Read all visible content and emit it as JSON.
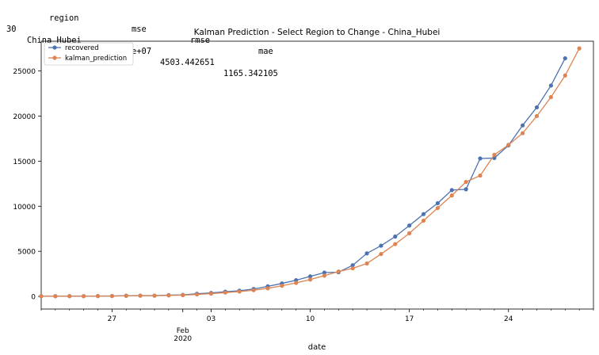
{
  "dataframe": {
    "columns": [
      "region",
      "mse",
      "rmse",
      "mae"
    ],
    "row": {
      "index": "30",
      "region": "China_Hubei",
      "mse": "2.028100e+07",
      "rmse": "4503.442651",
      "mae": "1165.342105"
    }
  },
  "chart_data": {
    "type": "line",
    "title": "Kalman Prediction - Select Region to Change - China_Hubei",
    "xlabel": "date",
    "ylabel": "",
    "x_start": "2020-01-22",
    "x_end": "2020-03-01",
    "ylim": [
      -1400,
      28300
    ],
    "grid": false,
    "legend_position": "top-left",
    "x_ticks": [
      {
        "date": "2020-01-27",
        "label": "27",
        "sublabel": ""
      },
      {
        "date": "2020-02-03",
        "label": "03",
        "sublabel": ""
      },
      {
        "date": "2020-02-10",
        "label": "10",
        "sublabel": ""
      },
      {
        "date": "2020-02-17",
        "label": "17",
        "sublabel": ""
      },
      {
        "date": "2020-02-24",
        "label": "24",
        "sublabel": ""
      }
    ],
    "month_label": {
      "date": "2020-02-01",
      "month": "Feb",
      "year": "2020"
    },
    "y_ticks": [
      0,
      5000,
      10000,
      15000,
      20000,
      25000
    ],
    "series": [
      {
        "name": "recovered",
        "color": "#4c72b0",
        "points": [
          [
            "2020-01-22",
            28
          ],
          [
            "2020-01-23",
            28
          ],
          [
            "2020-01-24",
            31
          ],
          [
            "2020-01-25",
            32
          ],
          [
            "2020-01-26",
            42
          ],
          [
            "2020-01-27",
            45
          ],
          [
            "2020-01-28",
            80
          ],
          [
            "2020-01-29",
            88
          ],
          [
            "2020-01-30",
            90
          ],
          [
            "2020-01-31",
            141
          ],
          [
            "2020-02-01",
            168
          ],
          [
            "2020-02-02",
            295
          ],
          [
            "2020-02-03",
            386
          ],
          [
            "2020-02-04",
            522
          ],
          [
            "2020-02-05",
            633
          ],
          [
            "2020-02-06",
            817
          ],
          [
            "2020-02-07",
            1115
          ],
          [
            "2020-02-08",
            1439
          ],
          [
            "2020-02-09",
            1795
          ],
          [
            "2020-02-10",
            2222
          ],
          [
            "2020-02-11",
            2639
          ],
          [
            "2020-02-12",
            2686
          ],
          [
            "2020-02-13",
            3459
          ],
          [
            "2020-02-14",
            4774
          ],
          [
            "2020-02-15",
            5623
          ],
          [
            "2020-02-16",
            6639
          ],
          [
            "2020-02-17",
            7862
          ],
          [
            "2020-02-18",
            9128
          ],
          [
            "2020-02-19",
            10337
          ],
          [
            "2020-02-20",
            11788
          ],
          [
            "2020-02-21",
            11881
          ],
          [
            "2020-02-22",
            15299
          ],
          [
            "2020-02-23",
            15343
          ],
          [
            "2020-02-24",
            16748
          ],
          [
            "2020-02-25",
            18971
          ],
          [
            "2020-02-26",
            20969
          ],
          [
            "2020-02-27",
            23383
          ],
          [
            "2020-02-28",
            26403
          ]
        ]
      },
      {
        "name": "kalman_prediction",
        "color": "#dd8452",
        "points": [
          [
            "2020-01-22",
            20
          ],
          [
            "2020-01-23",
            24
          ],
          [
            "2020-01-24",
            27
          ],
          [
            "2020-01-25",
            30
          ],
          [
            "2020-01-26",
            36
          ],
          [
            "2020-01-27",
            42
          ],
          [
            "2020-01-28",
            60
          ],
          [
            "2020-01-29",
            75
          ],
          [
            "2020-01-30",
            85
          ],
          [
            "2020-01-31",
            110
          ],
          [
            "2020-02-01",
            140
          ],
          [
            "2020-02-02",
            220
          ],
          [
            "2020-02-03",
            310
          ],
          [
            "2020-02-04",
            430
          ],
          [
            "2020-02-05",
            540
          ],
          [
            "2020-02-06",
            690
          ],
          [
            "2020-02-07",
            900
          ],
          [
            "2020-02-08",
            1180
          ],
          [
            "2020-02-09",
            1500
          ],
          [
            "2020-02-10",
            1870
          ],
          [
            "2020-02-11",
            2300
          ],
          [
            "2020-02-12",
            2760
          ],
          [
            "2020-02-13",
            3110
          ],
          [
            "2020-02-14",
            3650
          ],
          [
            "2020-02-15",
            4700
          ],
          [
            "2020-02-16",
            5800
          ],
          [
            "2020-02-17",
            7000
          ],
          [
            "2020-02-18",
            8400
          ],
          [
            "2020-02-19",
            9800
          ],
          [
            "2020-02-20",
            11200
          ],
          [
            "2020-02-21",
            12700
          ],
          [
            "2020-02-22",
            13400
          ],
          [
            "2020-02-23",
            15700
          ],
          [
            "2020-02-24",
            16800
          ],
          [
            "2020-02-25",
            18100
          ],
          [
            "2020-02-26",
            20000
          ],
          [
            "2020-02-27",
            22100
          ],
          [
            "2020-02-28",
            24500
          ],
          [
            "2020-02-29",
            27500
          ]
        ]
      }
    ]
  }
}
